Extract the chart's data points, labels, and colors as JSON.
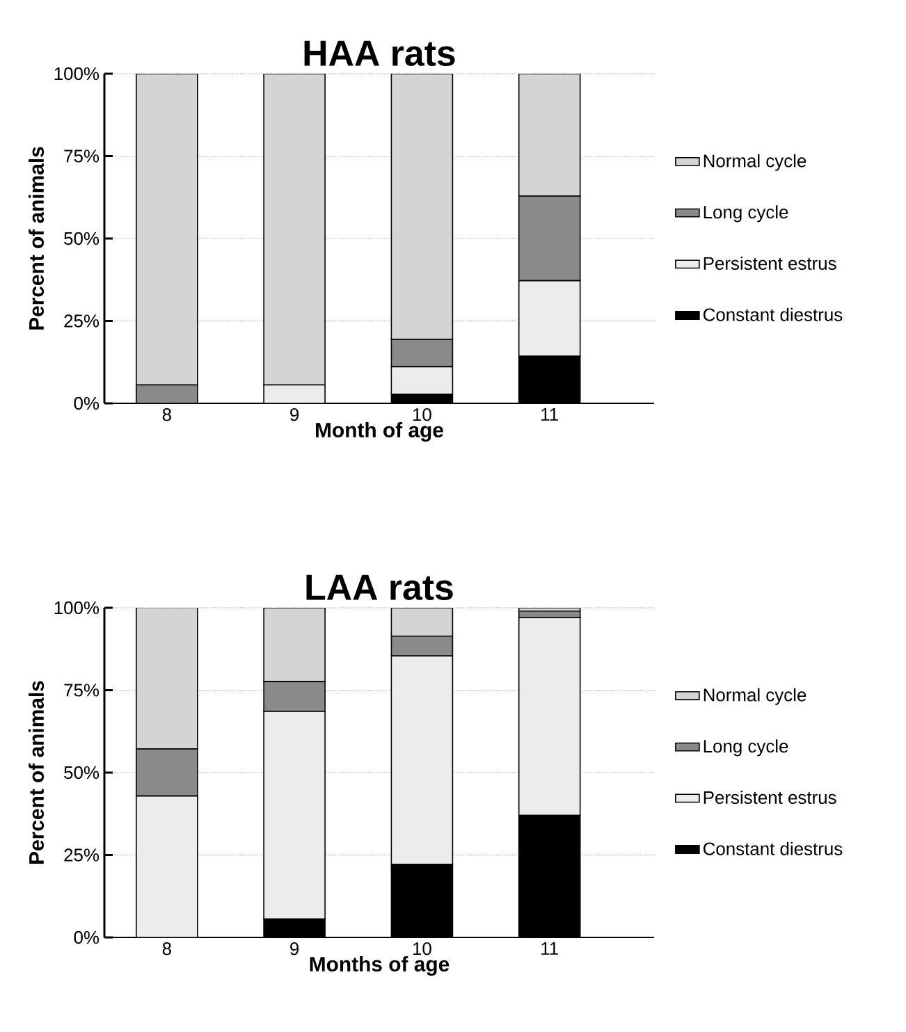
{
  "chart_data": [
    {
      "type": "bar",
      "title": "HAA rats",
      "xlabel": "Month of age",
      "ylabel": "Percent of animals",
      "categories": [
        "8",
        "9",
        "10",
        "11"
      ],
      "stacked": true,
      "legend": "right",
      "grid": "y",
      "ylim": [
        0,
        100
      ],
      "yticks": [
        {
          "value": 0,
          "label": "0%"
        },
        {
          "value": 25,
          "label": "25%"
        },
        {
          "value": 50,
          "label": "50%"
        },
        {
          "value": 75,
          "label": "75%"
        },
        {
          "value": 100,
          "label": "100%"
        }
      ],
      "series": [
        {
          "name": "Constant diestrus",
          "color": "#000000",
          "values": [
            0,
            0,
            2.8,
            14.3
          ]
        },
        {
          "name": "Persistent estrus",
          "color": "#ececec",
          "values": [
            0,
            5.6,
            8.3,
            22.9
          ]
        },
        {
          "name": "Long cycle",
          "color": "#8a8a8a",
          "values": [
            5.6,
            0,
            8.3,
            25.7
          ]
        },
        {
          "name": "Normal cycle",
          "color": "#d4d4d4",
          "values": [
            94.4,
            94.4,
            80.6,
            37.1
          ]
        }
      ]
    },
    {
      "type": "bar",
      "title": "LAA rats",
      "xlabel": "Months of age",
      "ylabel": "Percent of animals",
      "categories": [
        "8",
        "9",
        "10",
        "11"
      ],
      "stacked": true,
      "legend": "right",
      "grid": "y",
      "ylim": [
        0,
        100
      ],
      "yticks": [
        {
          "value": 0,
          "label": "0%"
        },
        {
          "value": 25,
          "label": "25%"
        },
        {
          "value": 50,
          "label": "50%"
        },
        {
          "value": 75,
          "label": "75%"
        },
        {
          "value": 100,
          "label": "100%"
        }
      ],
      "series": [
        {
          "name": "Constant diestrus",
          "color": "#000000",
          "values": [
            0,
            5.6,
            22.2,
            37
          ]
        },
        {
          "name": "Persistent estrus",
          "color": "#ececec",
          "values": [
            42.9,
            63,
            63.2,
            60
          ]
        },
        {
          "name": "Long cycle",
          "color": "#8a8a8a",
          "values": [
            14.3,
            9,
            6,
            2
          ]
        },
        {
          "name": "Normal cycle",
          "color": "#d4d4d4",
          "values": [
            42.9,
            22.4,
            8.6,
            1
          ]
        }
      ]
    }
  ]
}
